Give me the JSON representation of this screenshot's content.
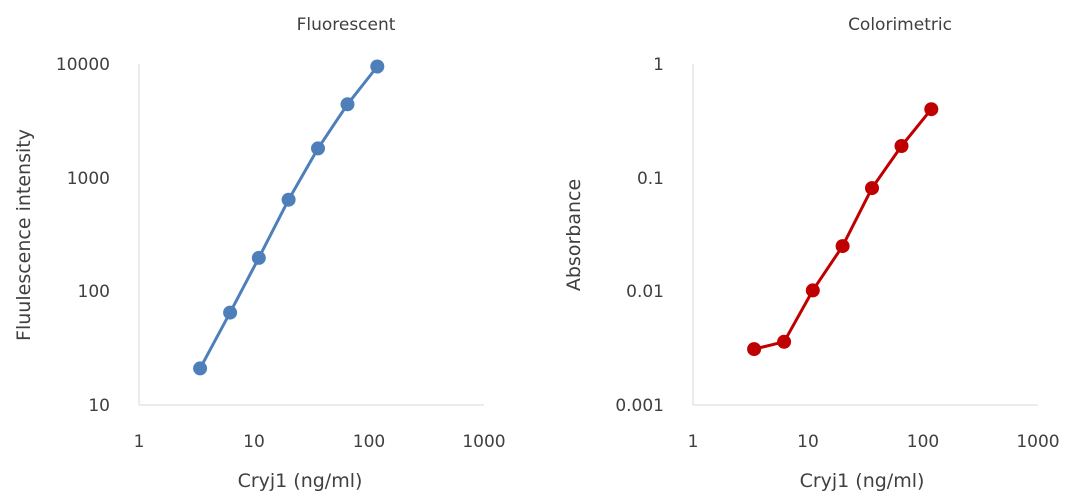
{
  "chart_data": [
    {
      "type": "line",
      "title": "Fluorescent",
      "xlabel": "Cryj1 (ng/ml)",
      "ylabel": "Fluulescence intensity",
      "x_scale": "log",
      "y_scale": "log",
      "xlim": [
        1,
        1000
      ],
      "ylim": [
        10,
        10000
      ],
      "x_ticks": [
        "1",
        "10",
        "100",
        "1000"
      ],
      "y_ticks": [
        "10",
        "100",
        "1000",
        "10000"
      ],
      "grid": false,
      "color": "#4e7fba",
      "series": [
        {
          "x": [
            3.4,
            6.2,
            11,
            20,
            36,
            65,
            118
          ],
          "y": [
            21,
            65,
            197,
            640,
            1810,
            4420,
            9500
          ]
        }
      ]
    },
    {
      "type": "line",
      "title": "Colorimetric",
      "xlabel": "Cryj1 (ng/ml)",
      "ylabel": "Absorbance",
      "x_scale": "log",
      "y_scale": "log",
      "xlim": [
        1,
        1000
      ],
      "ylim": [
        0.001,
        1
      ],
      "x_ticks": [
        "1",
        "10",
        "100",
        "1000"
      ],
      "y_ticks": [
        "0.001",
        "0.01",
        "0.1",
        "1"
      ],
      "grid": false,
      "color": "#c00000",
      "series": [
        {
          "x": [
            3.4,
            6.2,
            11,
            20,
            36,
            65,
            118
          ],
          "y": [
            0.0031,
            0.0036,
            0.0102,
            0.025,
            0.081,
            0.19,
            0.4
          ]
        }
      ]
    }
  ]
}
